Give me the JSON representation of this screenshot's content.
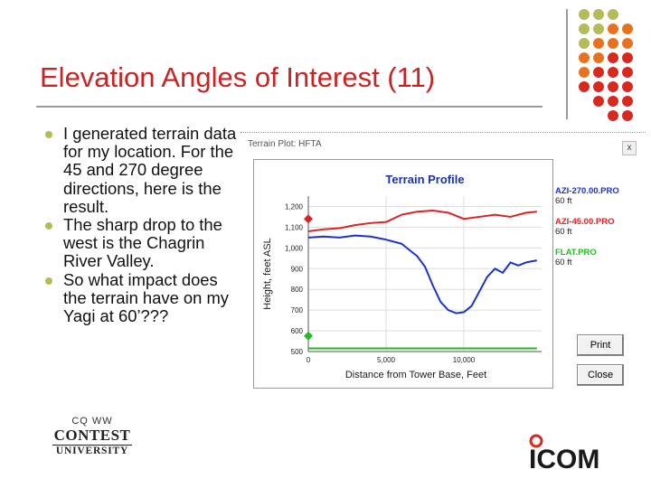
{
  "slide": {
    "title": "Elevation Angles of Interest (11)",
    "bullets": [
      "I generated terrain data for my location. For the 45 and 270 degree directions, here is the result.",
      "The sharp drop to the west is the Chagrin River Valley.",
      "So what impact does the terrain have on my Yagi at 60’???"
    ]
  },
  "app": {
    "window_title": "Terrain Plot: HFTA",
    "close_glyph": "x",
    "print_label": "Print",
    "close_label": "Close",
    "legend": [
      {
        "name": "AZI-270.00.PRO",
        "height": "60 ft",
        "color": "#1a33cc"
      },
      {
        "name": "AZI-45.00.PRO",
        "height": "60 ft",
        "color": "#dd2222"
      },
      {
        "name": "FLAT.PRO",
        "height": "60 ft",
        "color": "#22bb22"
      }
    ]
  },
  "chart_data": {
    "type": "line",
    "title": "Terrain Profile",
    "xlabel": "Distance from Tower Base, Feet",
    "ylabel": "Height, feet ASL",
    "xlim": [
      0,
      15000
    ],
    "ylim": [
      500,
      1250
    ],
    "x_ticks": [
      0,
      5000,
      10000
    ],
    "x_tick_labels": [
      "0",
      "5,000",
      "10,000"
    ],
    "y_ticks": [
      500,
      600,
      700,
      800,
      900,
      1000,
      1100,
      1200
    ],
    "y_tick_labels": [
      "500",
      "600",
      "700",
      "800",
      "900",
      "1,000",
      "1,100",
      "1,200"
    ],
    "series": [
      {
        "name": "AZI-45.00.PRO",
        "color": "#dd2222",
        "x": [
          0,
          1000,
          2000,
          3000,
          4000,
          5000,
          6000,
          7000,
          8000,
          9000,
          10000,
          11000,
          12000,
          13000,
          14000,
          14700
        ],
        "y": [
          1080,
          1090,
          1095,
          1110,
          1120,
          1125,
          1160,
          1175,
          1180,
          1170,
          1140,
          1150,
          1160,
          1150,
          1170,
          1175
        ]
      },
      {
        "name": "AZI-270.00.PRO",
        "color": "#1a33cc",
        "x": [
          0,
          1000,
          2000,
          3000,
          4000,
          5000,
          6000,
          6500,
          7000,
          7500,
          8000,
          8500,
          9000,
          9500,
          10000,
          10500,
          11000,
          11500,
          12000,
          12500,
          13000,
          13500,
          14000,
          14700
        ],
        "y": [
          1050,
          1055,
          1050,
          1060,
          1055,
          1040,
          1020,
          990,
          960,
          910,
          820,
          740,
          700,
          685,
          690,
          720,
          790,
          860,
          900,
          880,
          930,
          915,
          930,
          940
        ]
      },
      {
        "name": "FLAT.PRO",
        "color": "#22bb22",
        "x": [
          0,
          14700
        ],
        "y": [
          515,
          515
        ]
      }
    ],
    "markers": [
      {
        "series": "AZI-45.00.PRO",
        "x": 0,
        "y": 1140,
        "color": "#dd2222"
      },
      {
        "series": "FLAT.PRO",
        "x": 0,
        "y": 575,
        "color": "#22bb22"
      }
    ],
    "grid": true
  },
  "logos": {
    "cu_top": "CQ WW",
    "cu_main": "CONTEST",
    "cu_sub": "UNIVERSITY",
    "icom": "ICOM"
  },
  "colors": {
    "title": "#cc2222",
    "bullet_dot": "#b4bb5a",
    "dot_olive": "#b4bb5a",
    "dot_orange": "#e8731e",
    "dot_red": "#d62a1e"
  }
}
